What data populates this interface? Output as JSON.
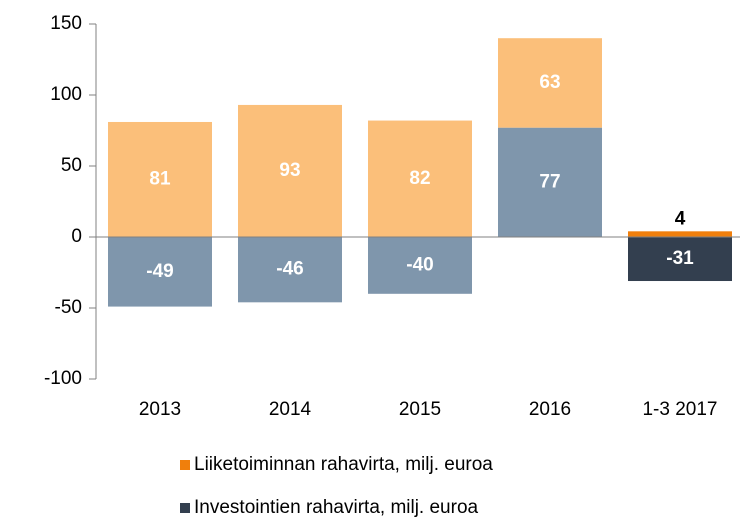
{
  "chart_data": {
    "type": "bar",
    "stacked": true,
    "categories": [
      "2013",
      "2014",
      "2015",
      "2016",
      "1-3 2017"
    ],
    "series": [
      {
        "name": "Liiketoiminnan rahavirta, milj. euroa",
        "color": "#f07f0c",
        "colors": [
          "#fbbf7a",
          "#fbbf7a",
          "#fbbf7a",
          "#fbbf7a",
          "#f07f0c"
        ],
        "values": [
          81,
          93,
          82,
          63,
          4
        ]
      },
      {
        "name": "Investointien rahavirta, milj. euroa",
        "color": "#333f4f",
        "colors": [
          "#7f96ac",
          "#7f96ac",
          "#7f96ac",
          "#7f96ac",
          "#333f4f"
        ],
        "values": [
          -49,
          -46,
          -40,
          77,
          -31
        ]
      }
    ],
    "ylim": [
      -100,
      150
    ],
    "yticks": [
      -100,
      -50,
      0,
      50,
      100,
      150
    ]
  }
}
